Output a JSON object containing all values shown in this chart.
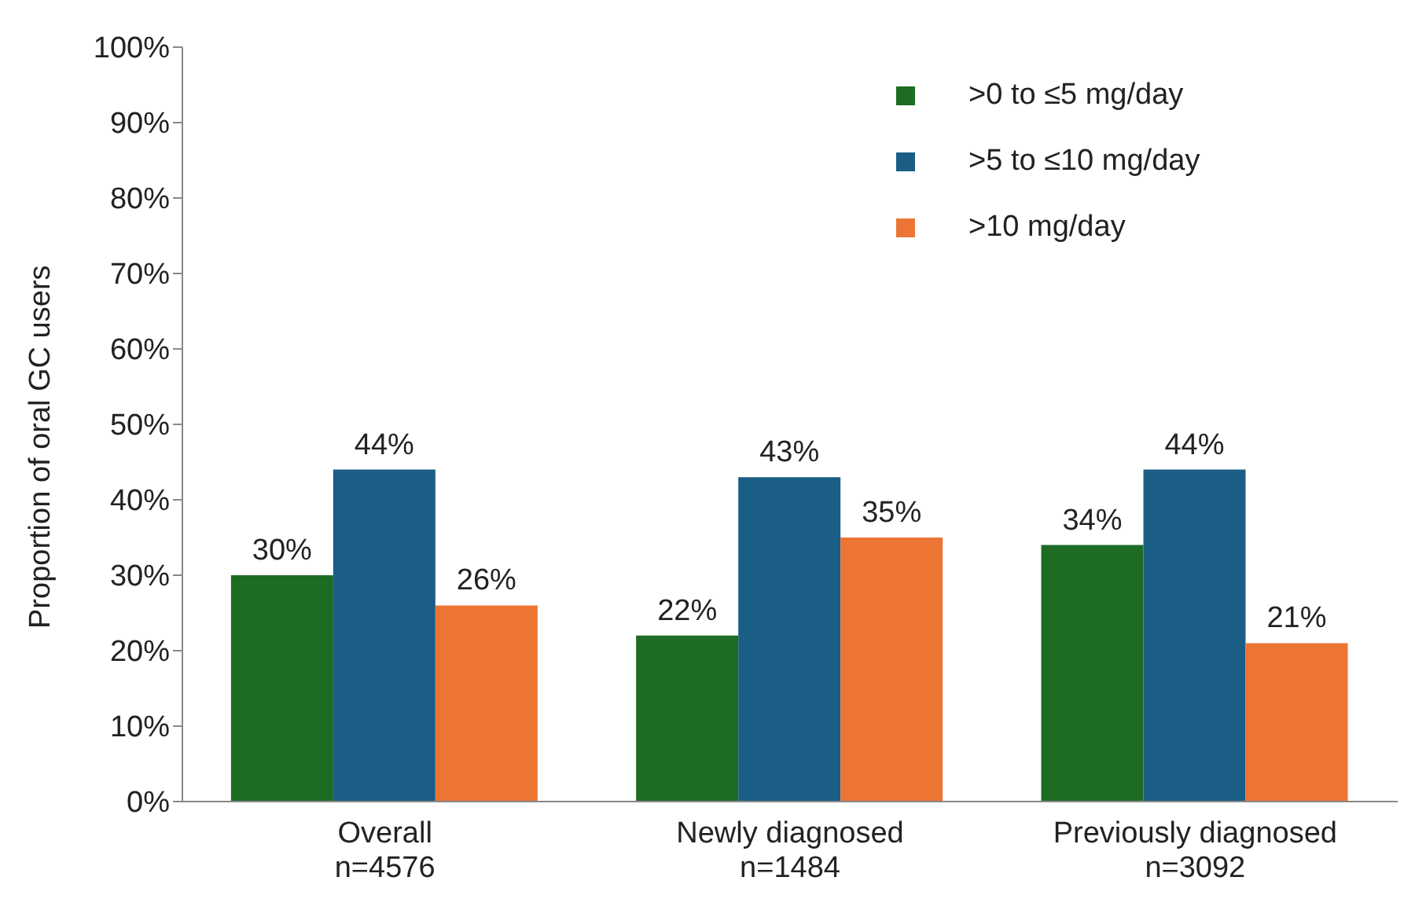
{
  "chart_data": {
    "type": "bar",
    "ylabel": "Proportion of oral GC users",
    "categories": [
      "Overall\nn=4576",
      "Newly diagnosed\nn=1484",
      "Previously diagnosed\nn=3092"
    ],
    "series": [
      {
        "name": ">0 to ≤5 mg/day",
        "color": "#1e6b24",
        "values": [
          30,
          22,
          34
        ],
        "value_labels": [
          "30%",
          "22%",
          "34%"
        ]
      },
      {
        "name": ">5 to ≤10 mg/day",
        "color": "#1b5e85",
        "values": [
          44,
          43,
          44
        ],
        "value_labels": [
          "44%",
          "43%",
          "44%"
        ]
      },
      {
        "name": ">10 mg/day",
        "color": "#ed7534",
        "values": [
          26,
          35,
          21
        ],
        "value_labels": [
          "26%",
          "35%",
          "21%"
        ]
      }
    ],
    "ylim": [
      0,
      100
    ],
    "yticks": [
      {
        "value": 0,
        "label": "0%"
      },
      {
        "value": 10,
        "label": "10%"
      },
      {
        "value": 20,
        "label": "20%"
      },
      {
        "value": 30,
        "label": "30%"
      },
      {
        "value": 40,
        "label": "40%"
      },
      {
        "value": 50,
        "label": "50%"
      },
      {
        "value": 60,
        "label": "60%"
      },
      {
        "value": 70,
        "label": "70%"
      },
      {
        "value": 80,
        "label": "80%"
      },
      {
        "value": 90,
        "label": "90%"
      },
      {
        "value": 100,
        "label": "100%"
      }
    ],
    "grid": false,
    "legend": "top right"
  }
}
